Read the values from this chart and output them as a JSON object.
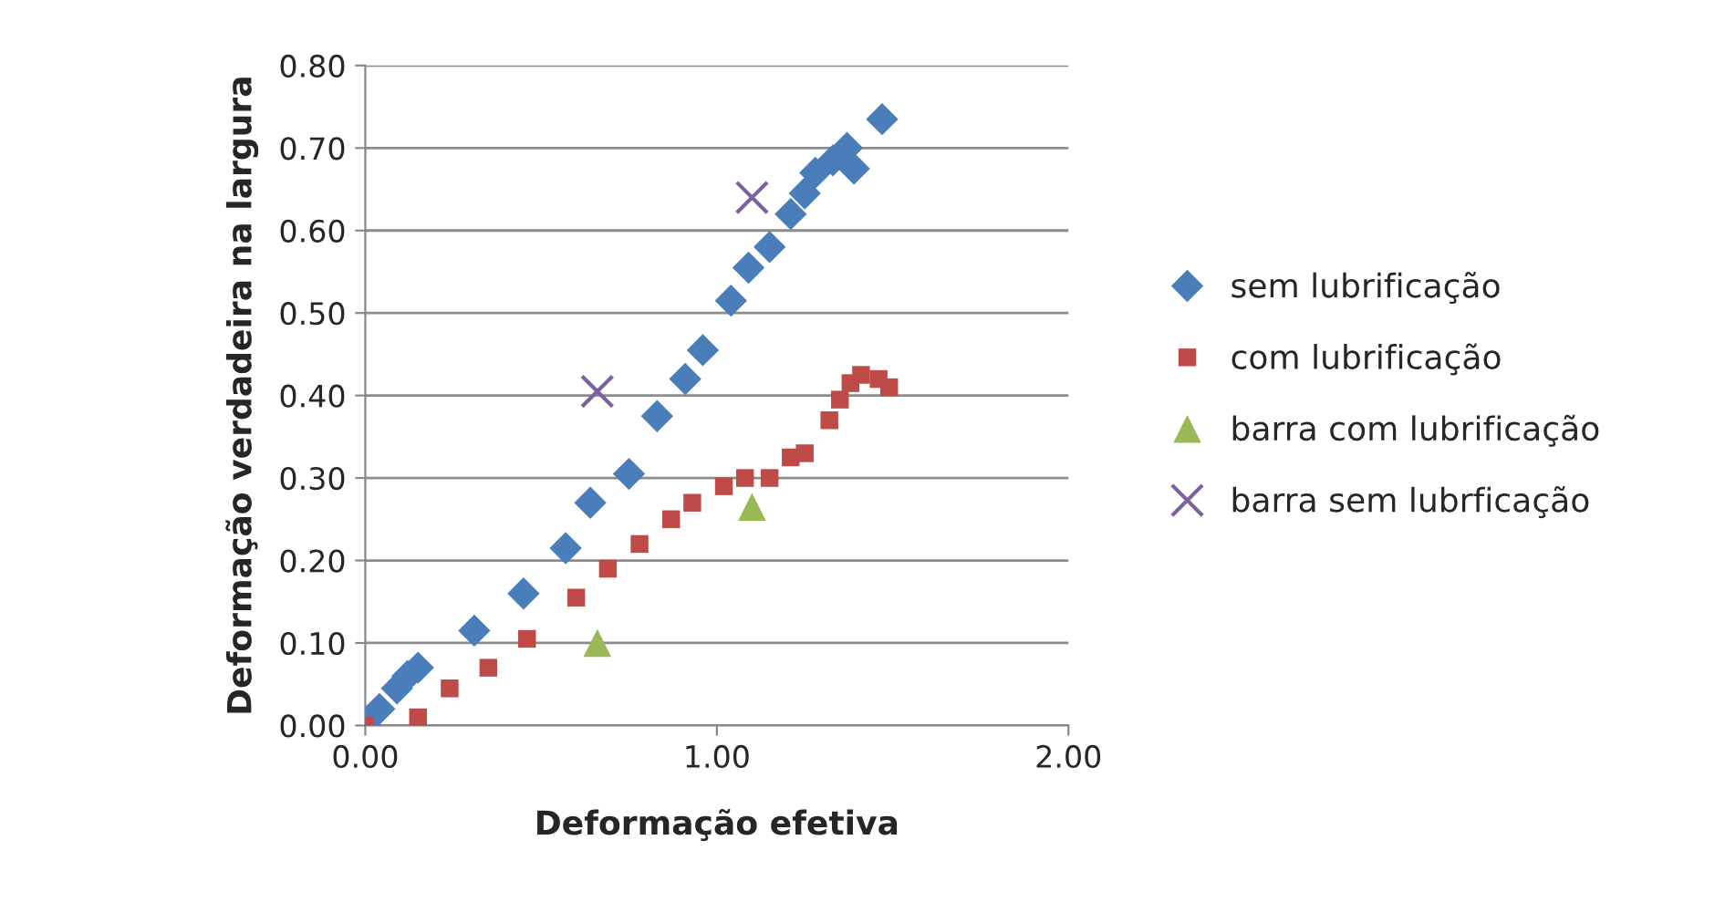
{
  "chart_data": {
    "type": "scatter",
    "xlabel": "Deformação efetiva",
    "ylabel": "Deformação verdadeira na largura",
    "xlim": [
      0,
      2
    ],
    "xticks": [
      {
        "value": 0,
        "label": "0.00"
      },
      {
        "value": 1,
        "label": "1.00"
      },
      {
        "value": 2,
        "label": "2.00"
      }
    ],
    "ylim": [
      0,
      0.8
    ],
    "yticks": [
      {
        "value": 0,
        "label": "0.00"
      },
      {
        "value": 0.1,
        "label": "0.10"
      },
      {
        "value": 0.2,
        "label": "0.20"
      },
      {
        "value": 0.3,
        "label": "0.30"
      },
      {
        "value": 0.4,
        "label": "0.40"
      },
      {
        "value": 0.5,
        "label": "0.50"
      },
      {
        "value": 0.6,
        "label": "0.60"
      },
      {
        "value": 0.7,
        "label": "0.70"
      },
      {
        "value": 0.8,
        "label": "0.80"
      }
    ],
    "grid": "y",
    "legend": "right",
    "series": [
      {
        "name": "sem lubrificação",
        "color": "#4a7ebb",
        "marker": "diamond",
        "x": [
          0,
          0.04,
          0.09,
          0.12,
          0.15,
          0.31,
          0.45,
          0.57,
          0.64,
          0.75,
          0.83,
          0.91,
          0.96,
          1.04,
          1.09,
          1.15,
          1.21,
          1.25,
          1.28,
          1.33,
          1.37,
          1.39,
          1.47
        ],
        "values": [
          0,
          0.02,
          0.045,
          0.06,
          0.07,
          0.115,
          0.16,
          0.215,
          0.27,
          0.305,
          0.375,
          0.42,
          0.455,
          0.515,
          0.555,
          0.58,
          0.62,
          0.645,
          0.67,
          0.685,
          0.7,
          0.675,
          0.735
        ]
      },
      {
        "name": "com lubrificação",
        "color": "#be4b48",
        "marker": "square",
        "x": [
          0,
          0.15,
          0.24,
          0.35,
          0.46,
          0.6,
          0.69,
          0.78,
          0.87,
          0.93,
          1.02,
          1.08,
          1.15,
          1.21,
          1.25,
          1.32,
          1.35,
          1.38,
          1.41,
          1.46,
          1.49
        ],
        "values": [
          0,
          0.01,
          0.045,
          0.07,
          0.105,
          0.155,
          0.19,
          0.22,
          0.25,
          0.27,
          0.29,
          0.3,
          0.3,
          0.325,
          0.33,
          0.37,
          0.395,
          0.415,
          0.425,
          0.42,
          0.41
        ]
      },
      {
        "name": "barra com lubrificação",
        "color": "#98b954",
        "marker": "triangle",
        "x": [
          0.66,
          1.1
        ],
        "values": [
          0.1,
          0.265
        ]
      },
      {
        "name": "barra sem lubrficação",
        "color": "#7d60a0",
        "marker": "cross",
        "x": [
          0.66,
          1.1
        ],
        "values": [
          0.405,
          0.64
        ]
      }
    ]
  }
}
